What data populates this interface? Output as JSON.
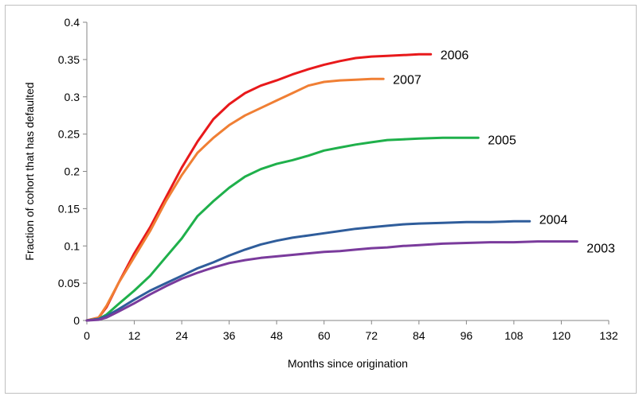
{
  "chart_data": {
    "type": "line",
    "title": "",
    "xlabel": "Months since origination",
    "ylabel": "Fraction of cohort that has defaulted",
    "xlim": [
      0,
      132
    ],
    "ylim": [
      0,
      0.4
    ],
    "x_ticks": [
      "0",
      "12",
      "24",
      "36",
      "48",
      "60",
      "72",
      "84",
      "96",
      "108",
      "120",
      "132"
    ],
    "y_ticks": [
      "0",
      "0.05",
      "0.1",
      "0.15",
      "0.2",
      "0.25",
      "0.3",
      "0.35",
      "0.4"
    ],
    "grid": false,
    "legend": "direct labels at line ends",
    "series": [
      {
        "name": "2006",
        "color": "#e8191b",
        "x": [
          0,
          3,
          5,
          8,
          12,
          16,
          20,
          24,
          28,
          32,
          36,
          40,
          44,
          48,
          52,
          56,
          60,
          64,
          68,
          72,
          76,
          80,
          84,
          87
        ],
        "y": [
          0,
          0.004,
          0.018,
          0.05,
          0.09,
          0.125,
          0.165,
          0.205,
          0.24,
          0.27,
          0.29,
          0.305,
          0.315,
          0.322,
          0.33,
          0.337,
          0.343,
          0.348,
          0.352,
          0.354,
          0.355,
          0.356,
          0.357,
          0.357
        ]
      },
      {
        "name": "2007",
        "color": "#f07f34",
        "x": [
          0,
          3,
          5,
          8,
          12,
          16,
          20,
          24,
          28,
          32,
          36,
          40,
          44,
          48,
          52,
          56,
          60,
          64,
          68,
          72,
          75
        ],
        "y": [
          0,
          0.004,
          0.02,
          0.05,
          0.085,
          0.12,
          0.16,
          0.195,
          0.225,
          0.245,
          0.262,
          0.275,
          0.285,
          0.295,
          0.305,
          0.315,
          0.32,
          0.322,
          0.323,
          0.324,
          0.324
        ]
      },
      {
        "name": "2005",
        "color": "#1fb04b",
        "x": [
          0,
          3,
          5,
          8,
          12,
          16,
          20,
          24,
          28,
          32,
          36,
          40,
          44,
          48,
          52,
          56,
          60,
          64,
          68,
          72,
          76,
          80,
          84,
          90,
          96,
          99
        ],
        "y": [
          0,
          0.002,
          0.008,
          0.022,
          0.04,
          0.06,
          0.085,
          0.11,
          0.14,
          0.16,
          0.178,
          0.193,
          0.203,
          0.21,
          0.215,
          0.221,
          0.228,
          0.232,
          0.236,
          0.239,
          0.242,
          0.243,
          0.244,
          0.245,
          0.245,
          0.245
        ]
      },
      {
        "name": "2004",
        "color": "#2f5d9b",
        "x": [
          0,
          3,
          5,
          8,
          12,
          16,
          20,
          24,
          28,
          32,
          36,
          40,
          44,
          48,
          52,
          56,
          60,
          64,
          68,
          72,
          76,
          80,
          84,
          90,
          96,
          102,
          108,
          112
        ],
        "y": [
          0,
          0.002,
          0.006,
          0.015,
          0.028,
          0.04,
          0.05,
          0.06,
          0.07,
          0.078,
          0.087,
          0.095,
          0.102,
          0.107,
          0.111,
          0.114,
          0.117,
          0.12,
          0.123,
          0.125,
          0.127,
          0.129,
          0.13,
          0.131,
          0.132,
          0.132,
          0.133,
          0.133
        ]
      },
      {
        "name": "2003",
        "color": "#7a3b9c",
        "x": [
          0,
          3,
          5,
          8,
          12,
          16,
          20,
          24,
          28,
          32,
          36,
          40,
          44,
          48,
          52,
          56,
          60,
          64,
          68,
          72,
          76,
          80,
          84,
          90,
          96,
          102,
          108,
          114,
          120,
          124
        ],
        "y": [
          0,
          0.001,
          0.004,
          0.012,
          0.023,
          0.035,
          0.046,
          0.056,
          0.064,
          0.071,
          0.077,
          0.081,
          0.084,
          0.086,
          0.088,
          0.09,
          0.092,
          0.093,
          0.095,
          0.097,
          0.098,
          0.1,
          0.101,
          0.103,
          0.104,
          0.105,
          0.105,
          0.106,
          0.106,
          0.106
        ]
      }
    ]
  }
}
